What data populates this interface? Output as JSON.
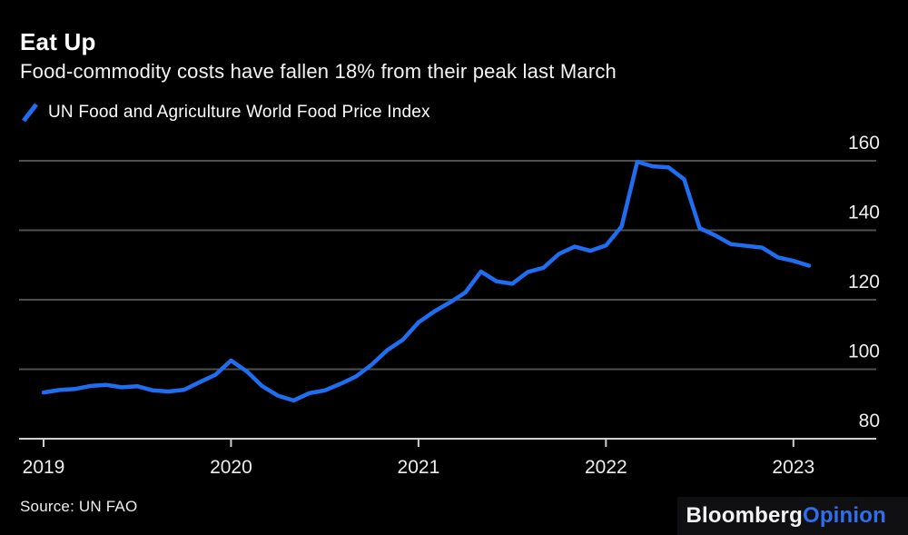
{
  "header": {
    "title": "Eat Up",
    "subtitle": "Food-commodity costs have fallen 18% from their peak last March"
  },
  "legend": {
    "label": "UN Food and Agriculture World Food Price Index",
    "color": "#1f6ef2"
  },
  "chart_data": {
    "type": "line",
    "title": "Eat Up",
    "subtitle": "Food-commodity costs have fallen 18% from their peak last March",
    "x": {
      "start": "2019-01",
      "end": "2023-02",
      "frequency": "monthly"
    },
    "x_tick_labels": [
      "2019",
      "2020",
      "2021",
      "2022",
      "2023"
    ],
    "x_tick_month_indices": [
      0,
      12,
      24,
      36,
      48
    ],
    "y_ticks": [
      80,
      100,
      120,
      140,
      160
    ],
    "ylim": [
      80,
      160
    ],
    "y_axis_side": "right",
    "grid": "horizontal",
    "series": [
      {
        "name": "UN Food and Agriculture World Food Price Index",
        "color": "#1f6ef2",
        "values": [
          93.3,
          94.0,
          94.3,
          95.2,
          95.5,
          94.8,
          95.1,
          93.9,
          93.6,
          94.1,
          96.3,
          98.4,
          102.5,
          99.4,
          95.1,
          92.4,
          91.0,
          93.1,
          93.9,
          95.8,
          97.9,
          101.3,
          105.5,
          108.5,
          113.5,
          116.6,
          119.2,
          122.1,
          128.1,
          125.3,
          124.6,
          128.0,
          129.2,
          133.2,
          135.3,
          134.1,
          135.6,
          141.1,
          159.7,
          158.4,
          158.1,
          154.7,
          140.6,
          138.5,
          136.0,
          135.5,
          135.0,
          132.2,
          131.2,
          129.8
        ]
      }
    ],
    "colors": {
      "background": "#000000",
      "gridline": "#4f4f4f",
      "axis": "#cfcfcf",
      "tick_label": "#ededed"
    }
  },
  "footer": {
    "source": "Source: UN FAO",
    "brand": {
      "part1": "Bloomberg",
      "part2": "Opinion",
      "accent_color": "#2f6fed"
    }
  }
}
